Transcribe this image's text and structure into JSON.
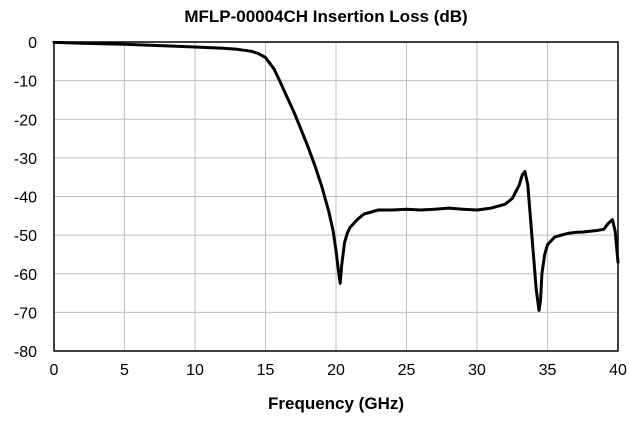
{
  "chart_data": {
    "type": "line",
    "title": "MFLP-00004CH Insertion Loss (dB)",
    "xlabel": "Frequency (GHz)",
    "ylabel": "",
    "xlim": [
      0,
      40
    ],
    "ylim": [
      -80,
      0
    ],
    "xticks": [
      0,
      5,
      10,
      15,
      20,
      25,
      30,
      35,
      40
    ],
    "yticks": [
      0,
      -10,
      -20,
      -30,
      -40,
      -50,
      -60,
      -70,
      -80
    ],
    "xtick_labels": [
      "0",
      "5",
      "10",
      "15",
      "20",
      "25",
      "30",
      "35",
      "40"
    ],
    "ytick_labels": [
      "0",
      "-10",
      "-20",
      "-30",
      "-40",
      "-50",
      "-60",
      "-70",
      "-80"
    ],
    "grid": true,
    "legend": "none",
    "series_color": "#000000",
    "series": [
      {
        "x": [
          0,
          2,
          5,
          8,
          10,
          12,
          13,
          14,
          14.5,
          15,
          15.3,
          15.6,
          16,
          16.5,
          17,
          17.5,
          18,
          18.5,
          19,
          19.5,
          19.8,
          20.0,
          20.2,
          20.3,
          20.4,
          20.6,
          20.8,
          21.0,
          21.5,
          22,
          22.5,
          23,
          24,
          25,
          26,
          27,
          28,
          29,
          30,
          31,
          31.5,
          32,
          32.5,
          33,
          33.2,
          33.4,
          33.6,
          33.8,
          34.0,
          34.2,
          34.4,
          34.5,
          34.6,
          34.8,
          35,
          35.5,
          36,
          36.5,
          37,
          37.5,
          38,
          38.5,
          39,
          39.3,
          39.6,
          39.8,
          40
        ],
        "y": [
          -0.1,
          -0.3,
          -0.6,
          -1.0,
          -1.3,
          -1.6,
          -1.9,
          -2.4,
          -3.0,
          -4.0,
          -5.5,
          -7.0,
          -10.0,
          -14.0,
          -18.0,
          -22.5,
          -27.0,
          -32.0,
          -37.5,
          -44.0,
          -49.0,
          -54.0,
          -60.0,
          -62.5,
          -58.0,
          -52.0,
          -49.5,
          -48.0,
          -46.0,
          -44.5,
          -44.0,
          -43.5,
          -43.5,
          -43.3,
          -43.5,
          -43.3,
          -43.0,
          -43.3,
          -43.5,
          -43.0,
          -42.5,
          -42.0,
          -40.5,
          -37.0,
          -34.5,
          -33.5,
          -37.0,
          -46.0,
          -55.0,
          -64.0,
          -69.5,
          -67.0,
          -60.0,
          -55.0,
          -52.5,
          -50.5,
          -50.0,
          -49.5,
          -49.3,
          -49.2,
          -49.0,
          -48.8,
          -48.5,
          -47.0,
          -46.0,
          -49.0,
          -57.0
        ]
      }
    ]
  }
}
